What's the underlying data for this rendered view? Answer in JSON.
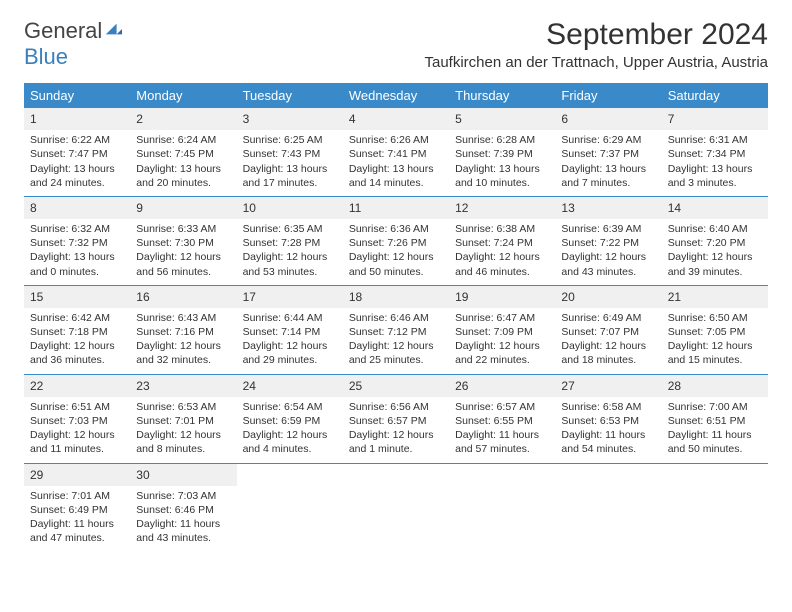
{
  "logo": {
    "text1": "General",
    "text2": "Blue"
  },
  "title": "September 2024",
  "location": "Taufkirchen an der Trattnach, Upper Austria, Austria",
  "colors": {
    "header_bg": "#3a8ac9",
    "daynum_bg": "#f0f0f0",
    "border": "#3a8ac9",
    "logo_blue": "#3a7fbf",
    "text": "#333333",
    "bg": "#ffffff"
  },
  "weekdays": [
    "Sunday",
    "Monday",
    "Tuesday",
    "Wednesday",
    "Thursday",
    "Friday",
    "Saturday"
  ],
  "weeks": [
    [
      {
        "n": "1",
        "sr": "Sunrise: 6:22 AM",
        "ss": "Sunset: 7:47 PM",
        "d1": "Daylight: 13 hours",
        "d2": "and 24 minutes."
      },
      {
        "n": "2",
        "sr": "Sunrise: 6:24 AM",
        "ss": "Sunset: 7:45 PM",
        "d1": "Daylight: 13 hours",
        "d2": "and 20 minutes."
      },
      {
        "n": "3",
        "sr": "Sunrise: 6:25 AM",
        "ss": "Sunset: 7:43 PM",
        "d1": "Daylight: 13 hours",
        "d2": "and 17 minutes."
      },
      {
        "n": "4",
        "sr": "Sunrise: 6:26 AM",
        "ss": "Sunset: 7:41 PM",
        "d1": "Daylight: 13 hours",
        "d2": "and 14 minutes."
      },
      {
        "n": "5",
        "sr": "Sunrise: 6:28 AM",
        "ss": "Sunset: 7:39 PM",
        "d1": "Daylight: 13 hours",
        "d2": "and 10 minutes."
      },
      {
        "n": "6",
        "sr": "Sunrise: 6:29 AM",
        "ss": "Sunset: 7:37 PM",
        "d1": "Daylight: 13 hours",
        "d2": "and 7 minutes."
      },
      {
        "n": "7",
        "sr": "Sunrise: 6:31 AM",
        "ss": "Sunset: 7:34 PM",
        "d1": "Daylight: 13 hours",
        "d2": "and 3 minutes."
      }
    ],
    [
      {
        "n": "8",
        "sr": "Sunrise: 6:32 AM",
        "ss": "Sunset: 7:32 PM",
        "d1": "Daylight: 13 hours",
        "d2": "and 0 minutes."
      },
      {
        "n": "9",
        "sr": "Sunrise: 6:33 AM",
        "ss": "Sunset: 7:30 PM",
        "d1": "Daylight: 12 hours",
        "d2": "and 56 minutes."
      },
      {
        "n": "10",
        "sr": "Sunrise: 6:35 AM",
        "ss": "Sunset: 7:28 PM",
        "d1": "Daylight: 12 hours",
        "d2": "and 53 minutes."
      },
      {
        "n": "11",
        "sr": "Sunrise: 6:36 AM",
        "ss": "Sunset: 7:26 PM",
        "d1": "Daylight: 12 hours",
        "d2": "and 50 minutes."
      },
      {
        "n": "12",
        "sr": "Sunrise: 6:38 AM",
        "ss": "Sunset: 7:24 PM",
        "d1": "Daylight: 12 hours",
        "d2": "and 46 minutes."
      },
      {
        "n": "13",
        "sr": "Sunrise: 6:39 AM",
        "ss": "Sunset: 7:22 PM",
        "d1": "Daylight: 12 hours",
        "d2": "and 43 minutes."
      },
      {
        "n": "14",
        "sr": "Sunrise: 6:40 AM",
        "ss": "Sunset: 7:20 PM",
        "d1": "Daylight: 12 hours",
        "d2": "and 39 minutes."
      }
    ],
    [
      {
        "n": "15",
        "sr": "Sunrise: 6:42 AM",
        "ss": "Sunset: 7:18 PM",
        "d1": "Daylight: 12 hours",
        "d2": "and 36 minutes."
      },
      {
        "n": "16",
        "sr": "Sunrise: 6:43 AM",
        "ss": "Sunset: 7:16 PM",
        "d1": "Daylight: 12 hours",
        "d2": "and 32 minutes."
      },
      {
        "n": "17",
        "sr": "Sunrise: 6:44 AM",
        "ss": "Sunset: 7:14 PM",
        "d1": "Daylight: 12 hours",
        "d2": "and 29 minutes."
      },
      {
        "n": "18",
        "sr": "Sunrise: 6:46 AM",
        "ss": "Sunset: 7:12 PM",
        "d1": "Daylight: 12 hours",
        "d2": "and 25 minutes."
      },
      {
        "n": "19",
        "sr": "Sunrise: 6:47 AM",
        "ss": "Sunset: 7:09 PM",
        "d1": "Daylight: 12 hours",
        "d2": "and 22 minutes."
      },
      {
        "n": "20",
        "sr": "Sunrise: 6:49 AM",
        "ss": "Sunset: 7:07 PM",
        "d1": "Daylight: 12 hours",
        "d2": "and 18 minutes."
      },
      {
        "n": "21",
        "sr": "Sunrise: 6:50 AM",
        "ss": "Sunset: 7:05 PM",
        "d1": "Daylight: 12 hours",
        "d2": "and 15 minutes."
      }
    ],
    [
      {
        "n": "22",
        "sr": "Sunrise: 6:51 AM",
        "ss": "Sunset: 7:03 PM",
        "d1": "Daylight: 12 hours",
        "d2": "and 11 minutes."
      },
      {
        "n": "23",
        "sr": "Sunrise: 6:53 AM",
        "ss": "Sunset: 7:01 PM",
        "d1": "Daylight: 12 hours",
        "d2": "and 8 minutes."
      },
      {
        "n": "24",
        "sr": "Sunrise: 6:54 AM",
        "ss": "Sunset: 6:59 PM",
        "d1": "Daylight: 12 hours",
        "d2": "and 4 minutes."
      },
      {
        "n": "25",
        "sr": "Sunrise: 6:56 AM",
        "ss": "Sunset: 6:57 PM",
        "d1": "Daylight: 12 hours",
        "d2": "and 1 minute."
      },
      {
        "n": "26",
        "sr": "Sunrise: 6:57 AM",
        "ss": "Sunset: 6:55 PM",
        "d1": "Daylight: 11 hours",
        "d2": "and 57 minutes."
      },
      {
        "n": "27",
        "sr": "Sunrise: 6:58 AM",
        "ss": "Sunset: 6:53 PM",
        "d1": "Daylight: 11 hours",
        "d2": "and 54 minutes."
      },
      {
        "n": "28",
        "sr": "Sunrise: 7:00 AM",
        "ss": "Sunset: 6:51 PM",
        "d1": "Daylight: 11 hours",
        "d2": "and 50 minutes."
      }
    ],
    [
      {
        "n": "29",
        "sr": "Sunrise: 7:01 AM",
        "ss": "Sunset: 6:49 PM",
        "d1": "Daylight: 11 hours",
        "d2": "and 47 minutes."
      },
      {
        "n": "30",
        "sr": "Sunrise: 7:03 AM",
        "ss": "Sunset: 6:46 PM",
        "d1": "Daylight: 11 hours",
        "d2": "and 43 minutes."
      },
      {
        "empty": true
      },
      {
        "empty": true
      },
      {
        "empty": true
      },
      {
        "empty": true
      },
      {
        "empty": true
      }
    ]
  ]
}
